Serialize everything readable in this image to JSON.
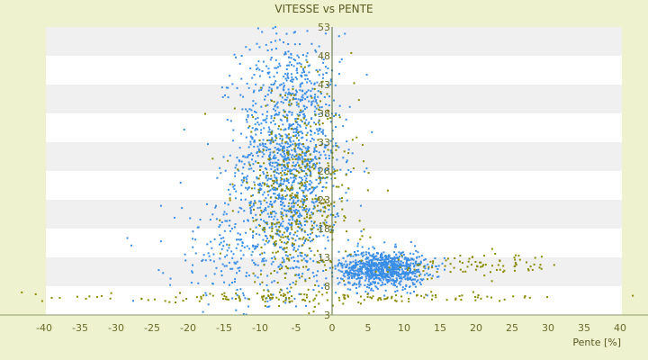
{
  "chart_data": {
    "type": "scatter",
    "title": "VITESSE vs PENTE",
    "xlabel": "Pente [%]",
    "ylabel": "",
    "xlim": [
      -40,
      43
    ],
    "ylim": [
      3,
      53
    ],
    "x_ticks": [
      -40,
      -35,
      -30,
      -25,
      -20,
      -15,
      -10,
      -5,
      0,
      5,
      10,
      15,
      20,
      25,
      30,
      35,
      40
    ],
    "y_ticks": [
      3,
      8,
      13,
      18,
      23,
      28,
      33,
      38,
      43,
      48,
      53
    ],
    "grid": "horizontal-bands",
    "legend": "none",
    "series": [
      {
        "color": "#3a8ee6",
        "clusters": [
          {
            "cx": -6,
            "cy": 30,
            "sx": 3.6,
            "sy": 11,
            "n": 1400
          },
          {
            "cx": 7,
            "cy": 11,
            "sx": 3.0,
            "sy": 1.6,
            "n": 900
          },
          {
            "cx": -14,
            "cy": 14,
            "sx": 4.5,
            "sy": 5,
            "n": 180
          }
        ]
      },
      {
        "color": "#8a8a00",
        "clusters": [
          {
            "cx": -5,
            "cy": 23,
            "sx": 4.2,
            "sy": 9,
            "n": 500
          },
          {
            "cx": 20,
            "cy": 11.5,
            "sx": 6,
            "sy": 1.0,
            "n": 90
          },
          {
            "cx": -4,
            "cy": 6,
            "sx": 20,
            "sy": 0.4,
            "n": 160
          }
        ]
      }
    ],
    "colors": {
      "background": "#eef2cf",
      "plot_area": "#ffffff",
      "band": "#f0f0f0",
      "axis": "#556b2f"
    }
  }
}
